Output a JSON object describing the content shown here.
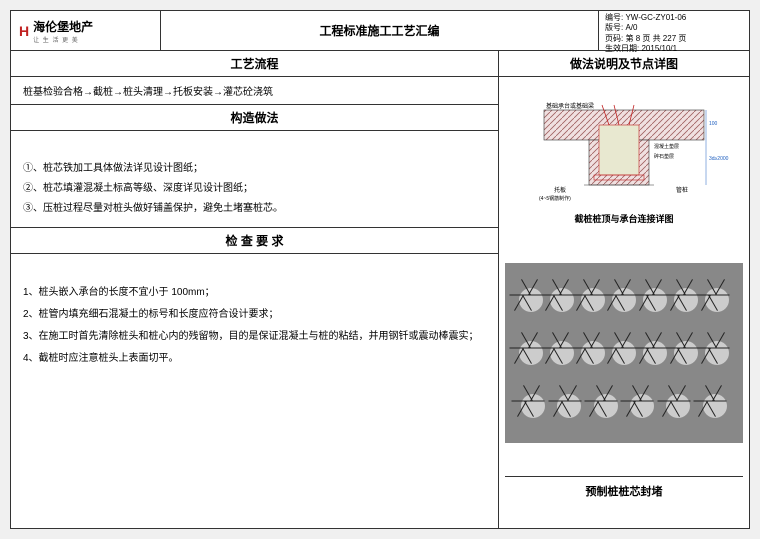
{
  "brand": {
    "mark": "H",
    "name": "海伦堡地产",
    "sub": "让 生 活 更 美"
  },
  "doc_title": "工程标准施工工艺汇编",
  "meta": {
    "code_label": "编号:",
    "code": "YW-GC-ZY01-06",
    "version_label": "版号:",
    "version": "A/0",
    "page_label": "页码:",
    "page": "第 8 页  共 227 页",
    "date_label": "生效日期:",
    "date": "2015/10/1"
  },
  "left": {
    "section1": "工艺流程",
    "process": "桩基检验合格→截桩→桩头清理→托板安装→灌芯砼浇筑",
    "section2": "构造做法",
    "construction": [
      "①、桩芯铁加工具体做法详见设计图纸；",
      "②、桩芯填灌混凝土标高等级、深度详见设计图纸；",
      "③、压桩过程尽量对桩头做好铺盖保护，避免土堵塞桩芯。"
    ],
    "section3": "检 查 要 求",
    "checks": [
      "1、桩头嵌入承台的长度不宜小于 100mm；",
      "2、桩管内填充细石混凝土的标号和长度应符合设计要求；",
      "3、在施工时首先清除桩头和桩心内的残留物，目的是保证混凝土与桩的粘结，并用钢钎或震动棒震实；",
      "4、截桩时应注意桩头上表面切平。"
    ]
  },
  "right": {
    "header": "做法说明及节点详图",
    "diagram": {
      "caption": "截桩桩顶与承台连接详图",
      "labels": {
        "top": "基础承台或基础梁",
        "l1": "混凝土垫层",
        "l2": "碎石垫层",
        "note1": "托板",
        "note2": "(4~5钢筋制作)",
        "right": "管桩",
        "dim1": "100",
        "dim2": "3d≥2000"
      },
      "colors": {
        "hatch": "#d4a0a0",
        "fill": "#e8e8d0",
        "line": "#c02020",
        "dim": "#2060c0"
      }
    },
    "photo_caption": "预制桩桩芯封堵"
  }
}
